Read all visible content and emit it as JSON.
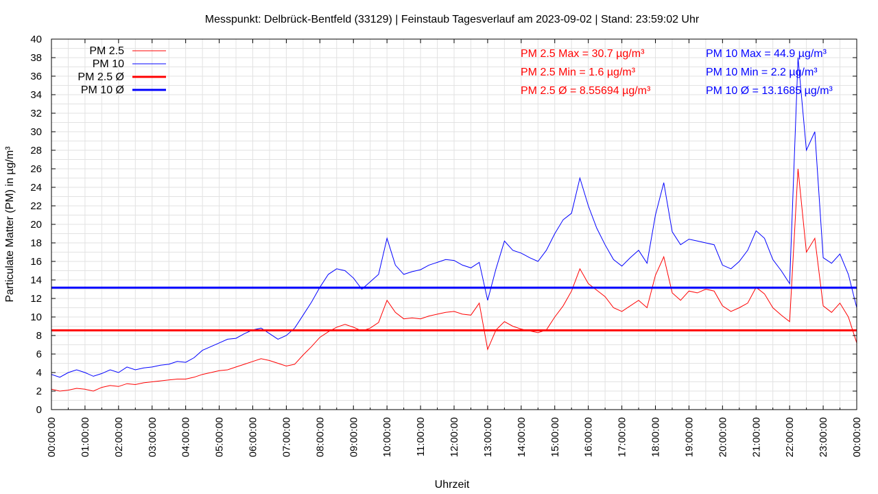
{
  "chart_data": {
    "type": "line",
    "title": "Messpunkt: Delbrück-Bentfeld (33129) | Feinstaub Tagesverlauf am 2023-09-02 | Stand: 23:59:02 Uhr",
    "xlabel": "Uhrzeit",
    "ylabel": "Particulate Matter (PM) in µg/m³",
    "ylim": [
      0,
      40
    ],
    "xlim": [
      "00:00:00",
      "24:00:00"
    ],
    "grid": true,
    "legend_position": "top-left",
    "x_tick_labels": [
      "00:00:00",
      "01:00:00",
      "02:00:00",
      "03:00:00",
      "04:00:00",
      "05:00:00",
      "06:00:00",
      "07:00:00",
      "08:00:00",
      "09:00:00",
      "10:00:00",
      "11:00:00",
      "12:00:00",
      "13:00:00",
      "14:00:00",
      "15:00:00",
      "16:00:00",
      "17:00:00",
      "18:00:00",
      "19:00:00",
      "20:00:00",
      "21:00:00",
      "22:00:00",
      "23:00:00",
      "00:00:00"
    ],
    "y_ticks": [
      0,
      2,
      4,
      6,
      8,
      10,
      12,
      14,
      16,
      18,
      20,
      22,
      24,
      26,
      28,
      30,
      32,
      34,
      36,
      38,
      40
    ],
    "series": [
      {
        "name": "PM 2.5",
        "color": "#ff0000",
        "x_hours": [
          0,
          0.25,
          0.5,
          0.75,
          1,
          1.25,
          1.5,
          1.75,
          2,
          2.25,
          2.5,
          2.75,
          3,
          3.25,
          3.5,
          3.75,
          4,
          4.25,
          4.5,
          4.75,
          5,
          5.25,
          5.5,
          5.75,
          6,
          6.25,
          6.5,
          6.75,
          7,
          7.25,
          7.5,
          7.75,
          8,
          8.25,
          8.5,
          8.75,
          9,
          9.25,
          9.5,
          9.75,
          10,
          10.25,
          10.5,
          10.75,
          11,
          11.25,
          11.5,
          11.75,
          12,
          12.25,
          12.5,
          12.75,
          13,
          13.25,
          13.5,
          13.75,
          14,
          14.25,
          14.5,
          14.75,
          15,
          15.25,
          15.5,
          15.75,
          16,
          16.25,
          16.5,
          16.75,
          17,
          17.25,
          17.5,
          17.75,
          18,
          18.25,
          18.5,
          18.75,
          19,
          19.25,
          19.5,
          19.75,
          20,
          20.25,
          20.5,
          20.75,
          21,
          21.25,
          21.5,
          21.75,
          22,
          22.25,
          22.5,
          22.75,
          23,
          23.25,
          23.5,
          23.75,
          24
        ],
        "values": [
          2.2,
          2.0,
          2.1,
          2.3,
          2.2,
          2.0,
          2.4,
          2.6,
          2.5,
          2.8,
          2.7,
          2.9,
          3.0,
          3.1,
          3.2,
          3.3,
          3.3,
          3.5,
          3.8,
          4.0,
          4.2,
          4.3,
          4.6,
          4.9,
          5.2,
          5.5,
          5.3,
          5.0,
          4.7,
          4.9,
          5.9,
          6.8,
          7.8,
          8.4,
          8.9,
          9.2,
          8.9,
          8.5,
          8.8,
          9.4,
          11.8,
          10.5,
          9.8,
          9.9,
          9.8,
          10.1,
          10.3,
          10.5,
          10.6,
          10.3,
          10.2,
          11.5,
          6.5,
          8.6,
          9.5,
          9.0,
          8.7,
          8.5,
          8.3,
          8.6,
          10.0,
          11.2,
          12.8,
          15.2,
          13.6,
          12.9,
          12.2,
          11.0,
          10.6,
          11.2,
          11.8,
          11.0,
          14.5,
          16.5,
          12.6,
          11.8,
          12.8,
          12.6,
          13.0,
          12.8,
          11.2,
          10.6,
          11.0,
          11.5,
          13.2,
          12.5,
          11.0,
          10.2,
          9.5,
          26.0,
          17.0,
          18.5,
          11.2,
          10.5,
          11.5,
          10.0,
          7.2
        ],
        "annotations": [
          "PM 2.5 Max = 30.7 µg/m³",
          "PM 2.5 Min = 1.6 µg/m³",
          "PM 2.5 Ø = 8.55694 µg/m³"
        ]
      },
      {
        "name": "PM 10",
        "color": "#0000ff",
        "x_hours": [
          0,
          0.25,
          0.5,
          0.75,
          1,
          1.25,
          1.5,
          1.75,
          2,
          2.25,
          2.5,
          2.75,
          3,
          3.25,
          3.5,
          3.75,
          4,
          4.25,
          4.5,
          4.75,
          5,
          5.25,
          5.5,
          5.75,
          6,
          6.25,
          6.5,
          6.75,
          7,
          7.25,
          7.5,
          7.75,
          8,
          8.25,
          8.5,
          8.75,
          9,
          9.25,
          9.5,
          9.75,
          10,
          10.25,
          10.5,
          10.75,
          11,
          11.25,
          11.5,
          11.75,
          12,
          12.25,
          12.5,
          12.75,
          13,
          13.25,
          13.5,
          13.75,
          14,
          14.25,
          14.5,
          14.75,
          15,
          15.25,
          15.5,
          15.75,
          16,
          16.25,
          16.5,
          16.75,
          17,
          17.25,
          17.5,
          17.75,
          18,
          18.25,
          18.5,
          18.75,
          19,
          19.25,
          19.5,
          19.75,
          20,
          20.25,
          20.5,
          20.75,
          21,
          21.25,
          21.5,
          21.75,
          22,
          22.25,
          22.5,
          22.75,
          23,
          23.25,
          23.5,
          23.75,
          24
        ],
        "values": [
          3.8,
          3.5,
          4.0,
          4.3,
          4.0,
          3.6,
          3.9,
          4.3,
          4.0,
          4.6,
          4.3,
          4.5,
          4.6,
          4.8,
          4.9,
          5.2,
          5.1,
          5.6,
          6.4,
          6.8,
          7.2,
          7.6,
          7.7,
          8.2,
          8.6,
          8.8,
          8.2,
          7.6,
          8.0,
          8.8,
          10.2,
          11.6,
          13.2,
          14.6,
          15.2,
          15.0,
          14.2,
          13.0,
          13.8,
          14.6,
          18.5,
          15.6,
          14.6,
          14.9,
          15.1,
          15.6,
          15.9,
          16.2,
          16.1,
          15.6,
          15.3,
          15.9,
          11.8,
          15.2,
          18.2,
          17.2,
          16.9,
          16.4,
          16.0,
          17.2,
          19.0,
          20.5,
          21.2,
          25.0,
          22.0,
          19.6,
          17.8,
          16.2,
          15.5,
          16.4,
          17.2,
          15.8,
          21.0,
          24.5,
          19.2,
          17.8,
          18.4,
          18.2,
          18.0,
          17.8,
          15.6,
          15.2,
          16.0,
          17.2,
          19.3,
          18.5,
          16.2,
          15.0,
          13.6,
          38.0,
          28.0,
          30.0,
          16.4,
          15.8,
          16.8,
          14.6,
          11.0
        ],
        "annotations": [
          "PM 10 Max = 44.9 µg/m³",
          "PM 10 Min = 2.2 µg/m³",
          "PM 10 Ø = 13.1685 µg/m³"
        ]
      }
    ],
    "averages": [
      {
        "name": "PM 2.5 Ø",
        "value": 8.55694,
        "color": "#ff0000"
      },
      {
        "name": "PM 10 Ø",
        "value": 13.1685,
        "color": "#0000ff"
      }
    ]
  }
}
